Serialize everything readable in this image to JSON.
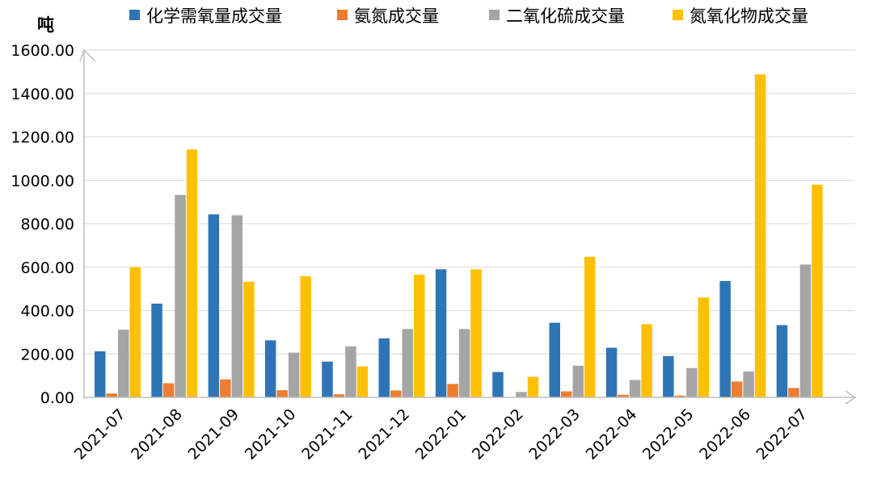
{
  "chart_data": {
    "type": "bar",
    "ylabel": "吨",
    "ylim": [
      0,
      1600
    ],
    "yticks": [
      "0.00",
      "200.00",
      "400.00",
      "600.00",
      "800.00",
      "1000.00",
      "1200.00",
      "1400.00",
      "1600.00"
    ],
    "grid": true,
    "legend_position": "top",
    "categories": [
      "2021-07",
      "2021-08",
      "2021-09",
      "2021-10",
      "2021-11",
      "2021-12",
      "2022-01",
      "2022-02",
      "2022-03",
      "2022-04",
      "2022-05",
      "2022-06",
      "2022-07"
    ],
    "series": [
      {
        "name": "化学需氧量成交量",
        "color": "#2e75b6",
        "values": [
          212,
          432,
          843,
          263,
          165,
          272,
          590,
          117,
          344,
          229,
          190,
          536,
          333
        ]
      },
      {
        "name": "氨氮成交量",
        "color": "#ed7d31",
        "values": [
          18,
          65,
          83,
          33,
          14,
          32,
          62,
          0,
          28,
          12,
          8,
          73,
          43
        ]
      },
      {
        "name": "二氧化硫成交量",
        "color": "#a5a5a5",
        "values": [
          312,
          933,
          839,
          206,
          235,
          315,
          315,
          25,
          146,
          80,
          135,
          120,
          612
        ]
      },
      {
        "name": "氮氧化物成交量",
        "color": "#ffc000",
        "values": [
          600,
          1142,
          533,
          558,
          143,
          565,
          590,
          95,
          648,
          337,
          460,
          1488,
          980
        ]
      }
    ]
  }
}
